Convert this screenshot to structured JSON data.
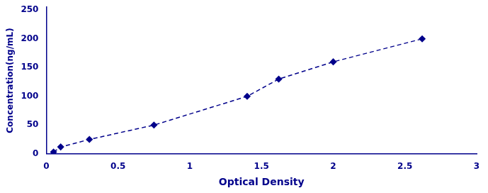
{
  "chart_data": {
    "type": "line",
    "x": [
      0.05,
      0.1,
      0.3,
      0.75,
      1.4,
      1.62,
      2.0,
      2.62
    ],
    "values": [
      3,
      12,
      25,
      50,
      100,
      130,
      160,
      200
    ],
    "color": "#00008B",
    "marker": "diamond",
    "line_style": "dashed",
    "xlabel": "Optical Density",
    "ylabel": "Concentration(ng/mL)",
    "xlim": [
      0,
      3
    ],
    "ylim": [
      0,
      255
    ],
    "xticks": [
      0,
      0.5,
      1,
      1.5,
      2,
      2.5,
      3
    ],
    "yticks": [
      0,
      50,
      100,
      150,
      200,
      250
    ],
    "grid": false,
    "legend": false
  }
}
